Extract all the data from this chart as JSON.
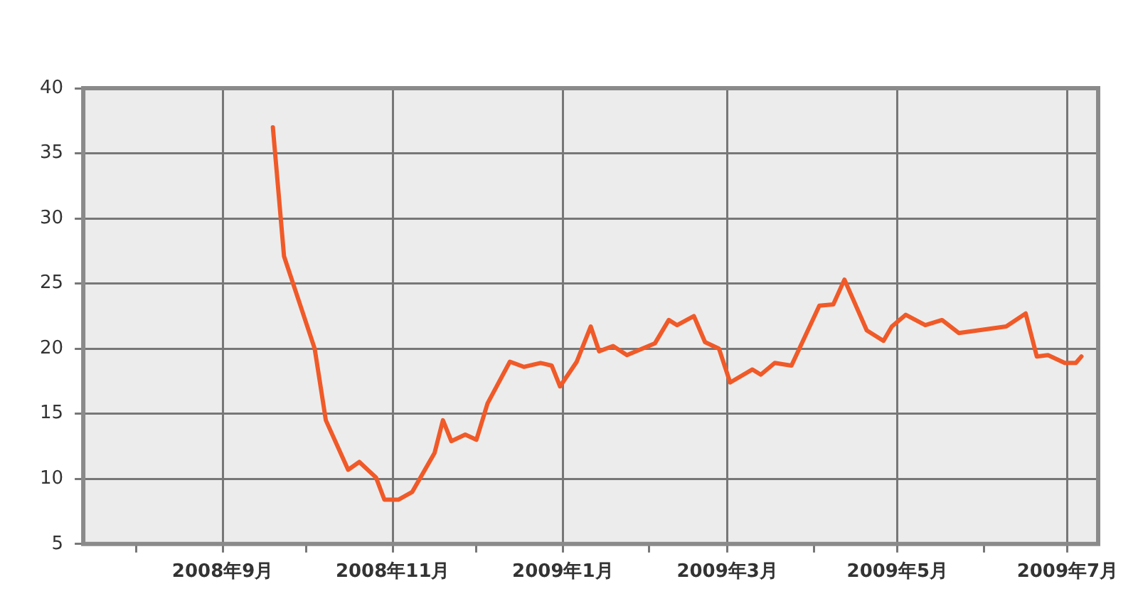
{
  "chart_data": {
    "type": "line",
    "x": [
      "2008-09-19",
      "2008-09-23",
      "2008-10-04",
      "2008-10-08",
      "2008-10-16",
      "2008-10-20",
      "2008-10-26",
      "2008-10-29",
      "2008-11-03",
      "2008-11-08",
      "2008-11-16",
      "2008-11-19",
      "2008-11-22",
      "2008-11-27",
      "2008-12-01",
      "2008-12-05",
      "2008-12-13",
      "2008-12-18",
      "2008-12-24",
      "2008-12-28",
      "2008-12-31",
      "2009-01-06",
      "2009-01-11",
      "2009-01-14",
      "2009-01-19",
      "2009-01-24",
      "2009-02-03",
      "2009-02-08",
      "2009-02-11",
      "2009-02-17",
      "2009-02-21",
      "2009-02-26",
      "2009-03-02",
      "2009-03-10",
      "2009-03-13",
      "2009-03-18",
      "2009-03-24",
      "2009-04-03",
      "2009-04-08",
      "2009-04-12",
      "2009-04-20",
      "2009-04-26",
      "2009-04-29",
      "2009-05-04",
      "2009-05-11",
      "2009-05-17",
      "2009-05-23",
      "2009-06-09",
      "2009-06-16",
      "2009-06-20",
      "2009-06-24",
      "2009-06-30",
      "2009-07-04",
      "2009-07-06"
    ],
    "series": [
      {
        "color": "#f05a28",
        "values": [
          37.0,
          27.1,
          20.0,
          14.5,
          10.7,
          11.3,
          10.1,
          8.4,
          8.4,
          9.0,
          12.0,
          14.5,
          12.9,
          13.4,
          13.0,
          15.8,
          19.0,
          18.6,
          18.9,
          18.7,
          17.1,
          19.0,
          21.7,
          19.8,
          20.2,
          19.5,
          20.4,
          22.2,
          21.8,
          22.5,
          20.5,
          20.0,
          17.4,
          18.4,
          18.0,
          18.9,
          18.7,
          23.3,
          23.4,
          25.3,
          21.4,
          20.6,
          21.7,
          22.6,
          21.8,
          22.2,
          21.2,
          21.7,
          22.7,
          19.4,
          19.5,
          18.9,
          18.9,
          19.4
        ]
      }
    ],
    "xlim": [
      "2008-07-13",
      "2009-07-12"
    ],
    "xticks": [
      {
        "value": "2008-08-01",
        "label": null
      },
      {
        "value": "2008-09-01",
        "label": "2008年9月"
      },
      {
        "value": "2008-10-01",
        "label": null
      },
      {
        "value": "2008-11-01",
        "label": "2008年11月"
      },
      {
        "value": "2008-12-01",
        "label": null
      },
      {
        "value": "2009-01-01",
        "label": "2009年1月"
      },
      {
        "value": "2009-02-01",
        "label": null
      },
      {
        "value": "2009-03-01",
        "label": "2009年3月"
      },
      {
        "value": "2009-04-01",
        "label": null
      },
      {
        "value": "2009-05-01",
        "label": "2009年5月"
      },
      {
        "value": "2009-06-01",
        "label": null
      },
      {
        "value": "2009-07-01",
        "label": "2009年7月"
      }
    ],
    "ylim": [
      5,
      40
    ],
    "yticks": [
      5,
      10,
      15,
      20,
      25,
      30,
      35,
      40
    ],
    "grid": true,
    "marker": "none",
    "line_style": "solid"
  }
}
